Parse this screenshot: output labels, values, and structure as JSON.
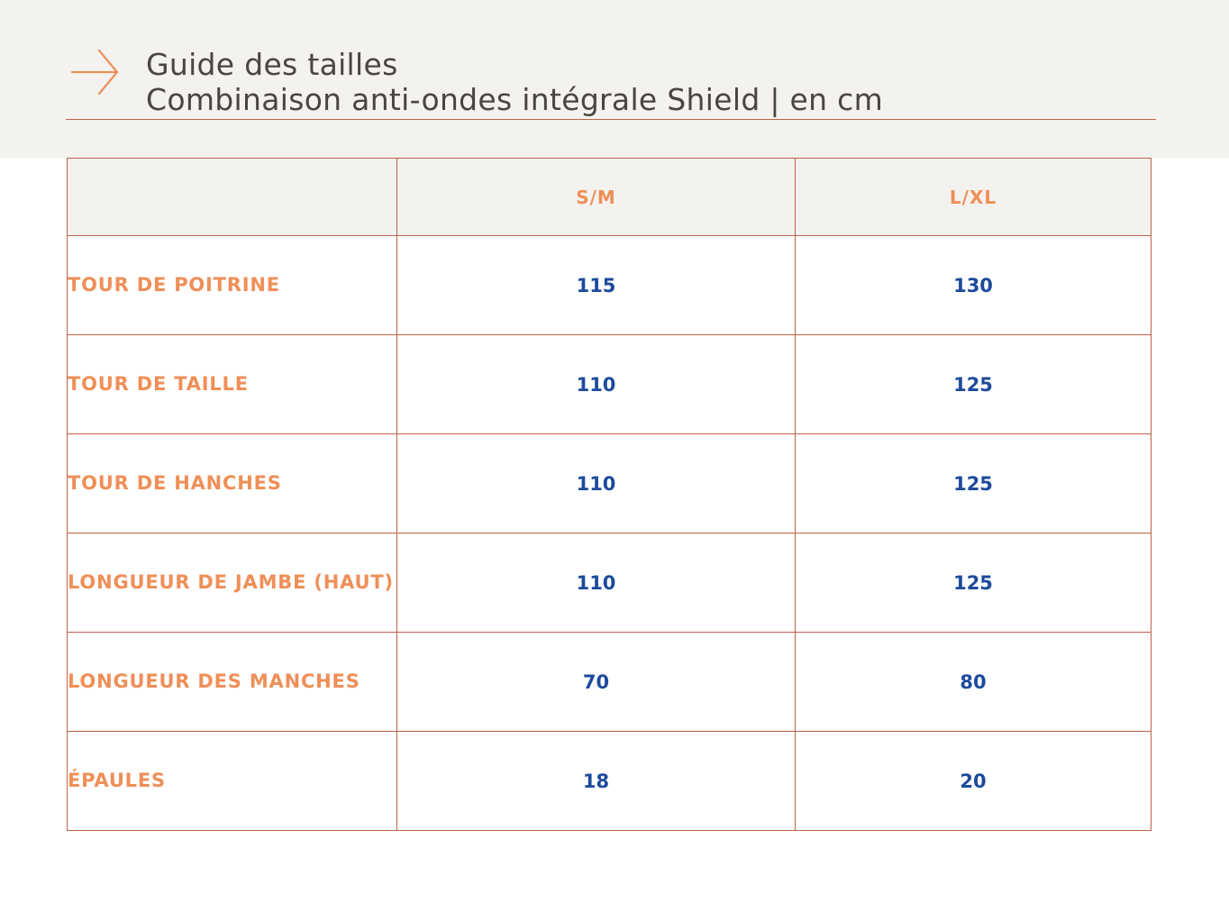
{
  "header": {
    "title_line1": "Guide des tailles",
    "title_line2": "Combinaison anti-ondes intégrale Shield | en cm",
    "icon": "arrow-right-icon"
  },
  "colors": {
    "header_bg": "#f3f2ee",
    "accent_orange": "#ef8f58",
    "border_rust": "#c0614a",
    "value_blue": "#1d4a9c",
    "title_text": "#4a4541"
  },
  "table": {
    "columns": [
      "",
      "S/M",
      "L/XL"
    ],
    "rows": [
      {
        "label": "TOUR DE POITRINE",
        "sm": "115",
        "lxl": "130"
      },
      {
        "label": "TOUR DE TAILLE",
        "sm": "110",
        "lxl": "125"
      },
      {
        "label": "TOUR DE HANCHES",
        "sm": "110",
        "lxl": "125"
      },
      {
        "label": "LONGUEUR DE JAMBE (HAUT)",
        "sm": "110",
        "lxl": "125"
      },
      {
        "label": "LONGUEUR DES MANCHES",
        "sm": "70",
        "lxl": "80"
      },
      {
        "label": "ÉPAULES",
        "sm": "18",
        "lxl": "20"
      }
    ]
  }
}
